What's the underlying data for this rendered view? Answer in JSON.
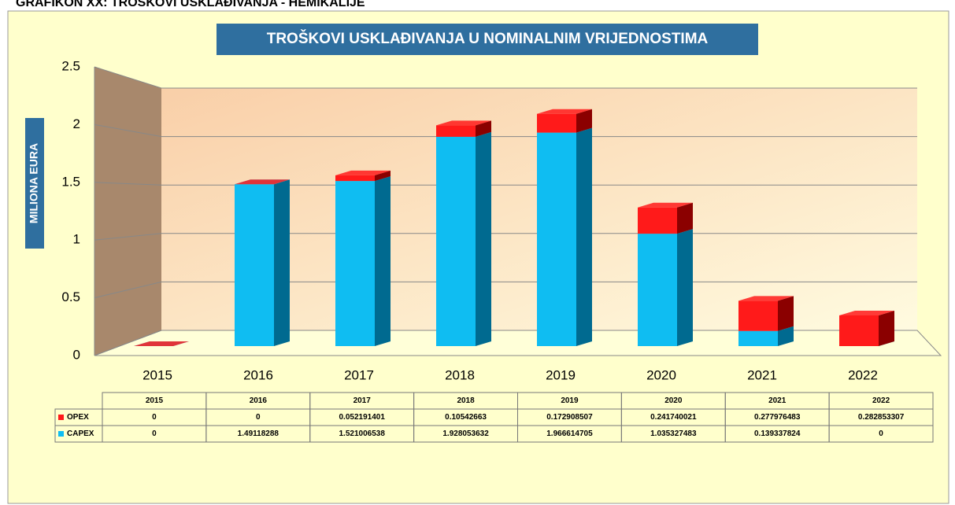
{
  "chart_data": {
    "type": "bar",
    "heading": "GRAFIKON XX: TROŠKOVI USKLAĐIVANJA - HEMIKALIJE",
    "title": "TROŠKOVI USKLAĐIVANJA U NOMINALNIM VRIJEDNOSTIMA",
    "y_label": "MILIONA EURA",
    "categories": [
      "2015",
      "2016",
      "2017",
      "2018",
      "2019",
      "2020",
      "2021",
      "2022"
    ],
    "series": [
      {
        "name": "OPEX",
        "color": "#ff1a1a",
        "side": "#8b0000",
        "values": [
          0,
          0,
          0.052191401,
          0.10542663,
          0.172908507,
          0.241740021,
          0.277976483,
          0.282853307
        ]
      },
      {
        "name": "CAPEX",
        "color": "#0fbdf2",
        "side": "#006a90",
        "values": [
          0,
          1.49118288,
          1.521006538,
          1.928053632,
          1.966614705,
          1.035327483,
          0.139337824,
          0
        ]
      }
    ],
    "ylim": [
      0,
      2.5
    ],
    "yticks": [
      0,
      0.5,
      1,
      1.5,
      2,
      2.5
    ],
    "stacked": true,
    "grid": true
  }
}
